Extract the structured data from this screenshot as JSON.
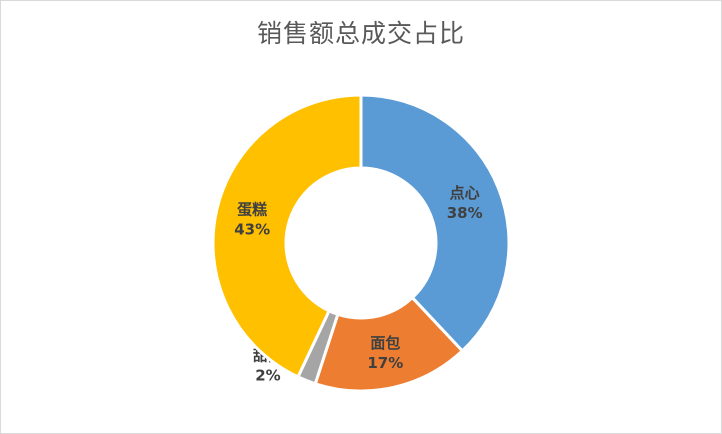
{
  "chart_data": {
    "type": "pie",
    "variant": "donut",
    "title": "销售额总成交占比",
    "slices": [
      {
        "name": "点心",
        "value": 38,
        "label_pct": "38%",
        "color": "#5b9bd5"
      },
      {
        "name": "面包",
        "value": 17,
        "label_pct": "17%",
        "color": "#ed7d31"
      },
      {
        "name": "甜品",
        "value": 2,
        "label_pct": "2%",
        "color": "#a5a5a5"
      },
      {
        "name": "蛋糕",
        "value": 43,
        "label_pct": "43%",
        "color": "#ffc000"
      }
    ],
    "legend": "none",
    "start_angle": "12 o'clock, clockwise"
  }
}
